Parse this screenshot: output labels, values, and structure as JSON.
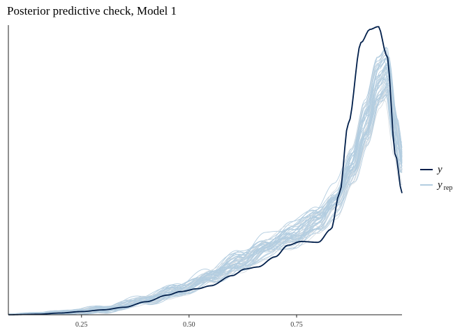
{
  "chart_data": {
    "type": "line",
    "title": "Posterior predictive check, Model 1",
    "xlabel": "",
    "ylabel": "",
    "xlim": [
      0.08,
      0.995
    ],
    "ylim": [
      0,
      1
    ],
    "x_ticks": [
      0.25,
      0.5,
      0.75
    ],
    "x_tick_labels": [
      "0.25",
      "0.50",
      "0.75"
    ],
    "grid": false,
    "legend_position": "right",
    "colors": {
      "y": "#011f4b",
      "yrep": "#b3cde0",
      "yrep_pale": "#d6dde3"
    },
    "legend": [
      {
        "key": "y",
        "label": "y",
        "subscript": ""
      },
      {
        "key": "yrep",
        "label": "y",
        "subscript": "rep"
      }
    ],
    "series": [
      {
        "name": "y",
        "x": [
          0.08,
          0.15,
          0.2,
          0.25,
          0.3,
          0.35,
          0.4,
          0.45,
          0.48,
          0.52,
          0.55,
          0.6,
          0.63,
          0.66,
          0.7,
          0.73,
          0.76,
          0.8,
          0.83,
          0.85,
          0.87,
          0.9,
          0.92,
          0.94,
          0.96,
          0.98,
          0.995
        ],
        "y": [
          0,
          0.002,
          0.006,
          0.011,
          0.017,
          0.026,
          0.045,
          0.068,
          0.08,
          0.09,
          0.1,
          0.135,
          0.158,
          0.165,
          0.2,
          0.24,
          0.253,
          0.25,
          0.295,
          0.42,
          0.66,
          0.94,
          0.985,
          0.995,
          0.895,
          0.55,
          0.42
        ]
      }
    ],
    "yrep_band": {
      "x": [
        0.08,
        0.2,
        0.3,
        0.4,
        0.48,
        0.55,
        0.62,
        0.68,
        0.74,
        0.8,
        0.84,
        0.88,
        0.91,
        0.94,
        0.96,
        0.98,
        0.995
      ],
      "y": [
        0,
        0.006,
        0.018,
        0.05,
        0.088,
        0.13,
        0.185,
        0.235,
        0.27,
        0.33,
        0.39,
        0.51,
        0.65,
        0.8,
        0.84,
        0.64,
        0.52
      ],
      "draws": 45
    }
  }
}
